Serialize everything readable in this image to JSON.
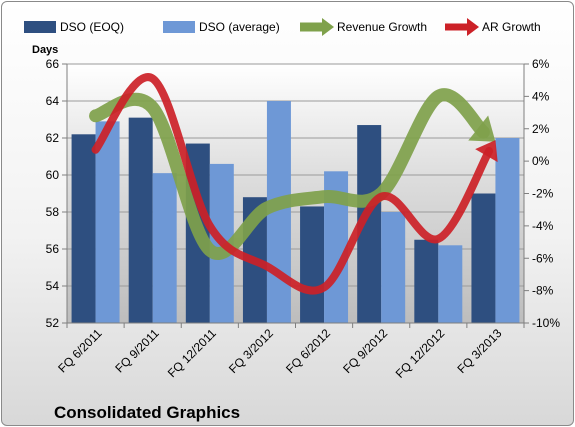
{
  "chart_data": {
    "type": "bar",
    "title": "Consolidated Graphics",
    "categories": [
      "FQ 6/2011",
      "FQ 9/2011",
      "FQ 12/2011",
      "FQ 3/2012",
      "FQ 6/2012",
      "FQ 9/2012",
      "FQ 12/2012",
      "FQ 3/2013"
    ],
    "ylabel": "Days",
    "ylim": [
      52,
      66
    ],
    "yticks": [
      "52",
      "54",
      "56",
      "58",
      "60",
      "62",
      "64",
      "66"
    ],
    "y2lim": [
      -10,
      6
    ],
    "y2ticks": [
      "-10%",
      "-8%",
      "-6%",
      "-4%",
      "-2%",
      "0%",
      "2%",
      "4%",
      "6%"
    ],
    "legend_position": "top",
    "series": [
      {
        "name": "DSO (EOQ)",
        "type": "bar",
        "axis": "left",
        "color": "#2e4f80",
        "values": [
          62.2,
          63.1,
          61.7,
          58.8,
          58.3,
          62.7,
          56.5,
          59.0
        ]
      },
      {
        "name": "DSO (average)",
        "type": "bar",
        "axis": "left",
        "color": "#6e98d6",
        "values": [
          62.9,
          60.1,
          60.6,
          64.0,
          60.2,
          58.0,
          56.2,
          62.0
        ]
      },
      {
        "name": "Revenue Growth",
        "type": "line",
        "axis": "right",
        "color": "#7fa14b",
        "unit": "%",
        "values": [
          2.8,
          3.3,
          -5.5,
          -2.9,
          -2.2,
          -2.0,
          4.0,
          1.2
        ]
      },
      {
        "name": "AR Growth",
        "type": "line",
        "axis": "right",
        "color": "#cc2127",
        "unit": "%",
        "values": [
          0.7,
          5.1,
          -4.0,
          -6.5,
          -7.8,
          -2.2,
          -4.8,
          1.3
        ]
      }
    ]
  }
}
